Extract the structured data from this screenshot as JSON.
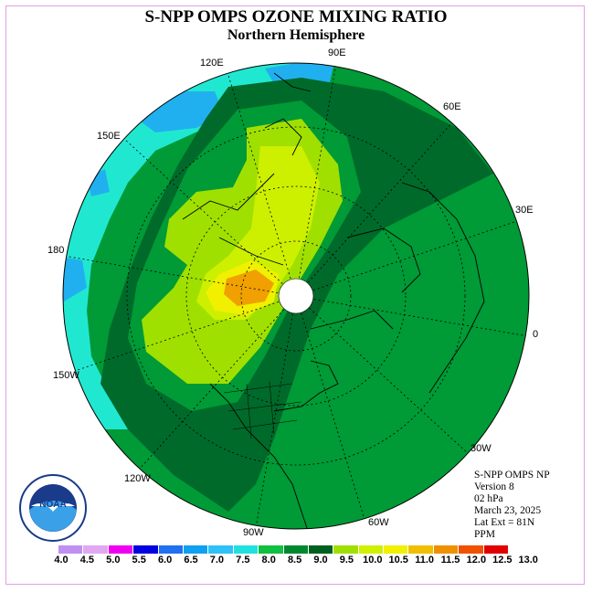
{
  "title": "S-NPP OMPS OZONE MIXING RATIO",
  "subtitle": "Northern Hemisphere",
  "longitude_labels": {
    "e90": "90E",
    "e60": "60E",
    "e30": "30E",
    "zero": "0",
    "w30": "30W",
    "w60": "60W",
    "w90": "90W",
    "w120": "120W",
    "w150": "150W",
    "d180": "180",
    "e150": "150E",
    "e120": "120E"
  },
  "info": {
    "instrument": "S-NPP OMPS NP",
    "version": "Version 8",
    "pressure": "02 hPa",
    "date": "March 23, 2025",
    "lat_ext": "Lat Ext = 81N",
    "units": "PPM"
  },
  "logo": {
    "text": "NOAA",
    "icon": "noaa-logo"
  },
  "color_scale": {
    "ticks": [
      "4.0",
      "4.5",
      "5.0",
      "5.5",
      "6.0",
      "6.5",
      "7.0",
      "7.5",
      "8.0",
      "8.5",
      "9.0",
      "9.5",
      "10.0",
      "10.5",
      "11.0",
      "11.5",
      "12.0",
      "12.5",
      "13.0"
    ],
    "colors": [
      "#c090f0",
      "#e0a8f0",
      "#f000f0",
      "#0000e0",
      "#2070f0",
      "#10a0f0",
      "#30c0f8",
      "#20e0e0",
      "#10c040",
      "#008830",
      "#006020",
      "#a0e000",
      "#d0f000",
      "#f0f000",
      "#f0c000",
      "#f09000",
      "#f05000",
      "#e00000",
      "#905030"
    ]
  },
  "colors": {
    "green_dark": "#006a2a",
    "green_mid": "#009a36",
    "green_light": "#10b040",
    "cyan": "#20e8d0",
    "blue": "#20b0f0",
    "lime": "#a0e000",
    "yellow_green": "#ccf000",
    "orange": "#f0a000",
    "pole": "#ffffff"
  }
}
